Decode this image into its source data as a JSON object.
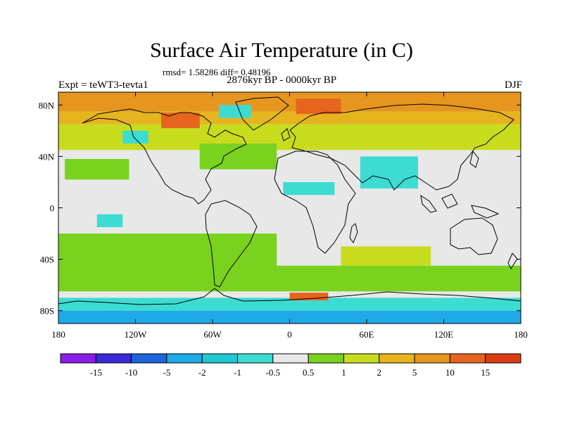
{
  "title": "Surface Air Temperature (in C)",
  "stats": "rmsd= 1.58286 diff= 0.48196",
  "period": "2876kyr BP - 0000kyr BP",
  "experiment": "Expt = teWT3-tevta1",
  "season": "DJF",
  "map": {
    "projection": "cylindrical-equidistant",
    "lon_range": [
      -180,
      180
    ],
    "lat_range": [
      -90,
      90
    ],
    "lon_ticks": [
      {
        "value": -180,
        "label": "180"
      },
      {
        "value": -120,
        "label": "120W"
      },
      {
        "value": -60,
        "label": "60W"
      },
      {
        "value": 0,
        "label": "0"
      },
      {
        "value": 60,
        "label": "60E"
      },
      {
        "value": 120,
        "label": "120E"
      },
      {
        "value": 180,
        "label": "180"
      }
    ],
    "lat_ticks": [
      {
        "value": 80,
        "label": "80N"
      },
      {
        "value": 40,
        "label": "40N"
      },
      {
        "value": 0,
        "label": "0"
      },
      {
        "value": -40,
        "label": "40S"
      },
      {
        "value": -80,
        "label": "80S"
      }
    ],
    "background_color": "#e8e8e8"
  },
  "colorbar": {
    "levels": [
      "-15",
      "-10",
      "-5",
      "-2",
      "-1",
      "-0.5",
      "0.5",
      "1",
      "2",
      "5",
      "10",
      "15"
    ],
    "colors": [
      "#8a1ee8",
      "#3c2ad8",
      "#1e64dc",
      "#1eaae6",
      "#1ec8d2",
      "#3cdcd2",
      "#e8e8e8",
      "#78d21e",
      "#c8dc1e",
      "#e6b41e",
      "#e6961e",
      "#e6641e",
      "#dc3c14"
    ]
  },
  "field_regions": [
    {
      "name": "arctic-ocean-warm",
      "color": "#e6961e",
      "lon": [
        -180,
        180
      ],
      "lat": [
        75,
        90
      ]
    },
    {
      "name": "arctic-margin-warm",
      "color": "#e6b41e",
      "lon": [
        -180,
        180
      ],
      "lat": [
        65,
        75
      ]
    },
    {
      "name": "northern-land-band",
      "color": "#c8dc1e",
      "lon": [
        -180,
        180
      ],
      "lat": [
        45,
        65
      ]
    },
    {
      "name": "north-atlantic-band",
      "color": "#78d21e",
      "lon": [
        -70,
        -10
      ],
      "lat": [
        30,
        50
      ]
    },
    {
      "name": "north-pacific-band",
      "color": "#78d21e",
      "lon": [
        -175,
        -125
      ],
      "lat": [
        22,
        38
      ]
    },
    {
      "name": "barents-hotspot",
      "color": "#e6641e",
      "lon": [
        5,
        40
      ],
      "lat": [
        73,
        85
      ]
    },
    {
      "name": "hudson-hotspot",
      "color": "#e6641e",
      "lon": [
        -100,
        -70
      ],
      "lat": [
        62,
        74
      ]
    },
    {
      "name": "greenland-cool",
      "color": "#3cdcd2",
      "lon": [
        -55,
        -30
      ],
      "lat": [
        70,
        80
      ]
    },
    {
      "name": "canada-cool",
      "color": "#3cdcd2",
      "lon": [
        -130,
        -110
      ],
      "lat": [
        50,
        60
      ]
    },
    {
      "name": "sahara-cool",
      "color": "#3cdcd2",
      "lon": [
        -5,
        35
      ],
      "lat": [
        10,
        20
      ]
    },
    {
      "name": "asia-cool",
      "color": "#3cdcd2",
      "lon": [
        55,
        100
      ],
      "lat": [
        15,
        40
      ]
    },
    {
      "name": "tropical-pacific-cool",
      "color": "#3cdcd2",
      "lon": [
        -150,
        -130
      ],
      "lat": [
        -15,
        -5
      ]
    },
    {
      "name": "south-pacific-band",
      "color": "#78d21e",
      "lon": [
        -180,
        -10
      ],
      "lat": [
        -55,
        -20
      ]
    },
    {
      "name": "southern-ocean-band",
      "color": "#78d21e",
      "lon": [
        -180,
        180
      ],
      "lat": [
        -65,
        -45
      ]
    },
    {
      "name": "south-indian-band",
      "color": "#c8dc1e",
      "lon": [
        40,
        110
      ],
      "lat": [
        -45,
        -30
      ]
    },
    {
      "name": "antarctic-margin-cool",
      "color": "#3cdcd2",
      "lon": [
        -180,
        180
      ],
      "lat": [
        -80,
        -70
      ]
    },
    {
      "name": "antarctica-cool",
      "color": "#1eaae6",
      "lon": [
        -180,
        180
      ],
      "lat": [
        -90,
        -80
      ]
    },
    {
      "name": "weddell-hotspot",
      "color": "#e6641e",
      "lon": [
        0,
        30
      ],
      "lat": [
        -72,
        -66
      ]
    }
  ]
}
